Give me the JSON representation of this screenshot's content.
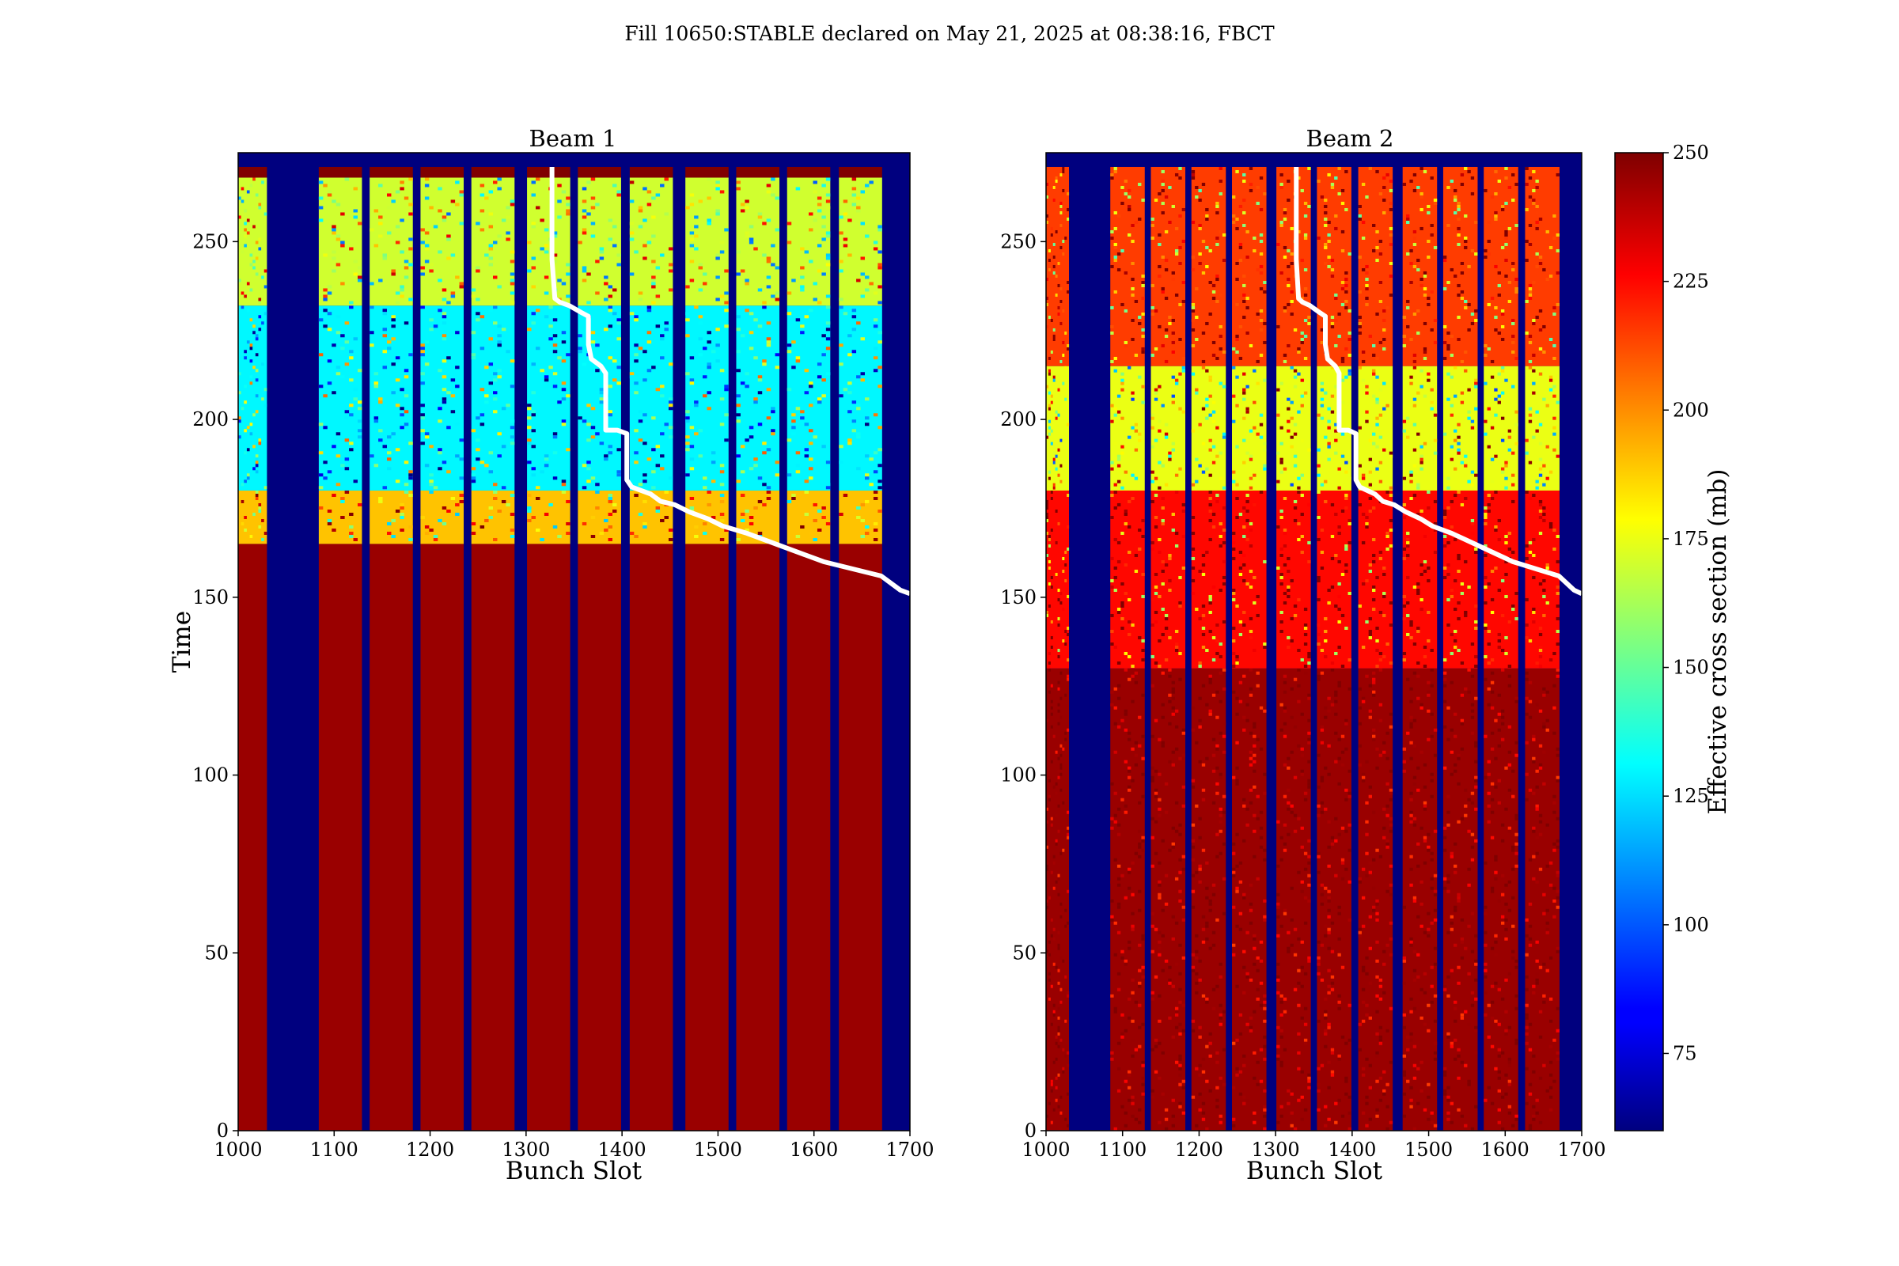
{
  "figure": {
    "suptitle": "Fill 10650:STABLE declared on May 21, 2025 at 08:38:16, FBCT"
  },
  "chart_data": [
    {
      "type": "heatmap",
      "title": "Beam 1",
      "xlabel": "Bunch Slot",
      "ylabel": "Time",
      "xlim": [
        1000,
        1700
      ],
      "ylim": [
        0,
        275
      ],
      "xticks": [
        "1000",
        "1100",
        "1200",
        "1300",
        "1400",
        "1500",
        "1600",
        "1700"
      ],
      "yticks": [
        "0",
        "50",
        "100",
        "150",
        "200",
        "250"
      ],
      "colorbar_label": "Effective cross section (mb)",
      "color_range": [
        60,
        250
      ],
      "colormap": "jet",
      "empty_value_color": "#00007f",
      "filled_trains": [
        [
          1000,
          1030
        ],
        [
          1084,
          1129
        ],
        [
          1137,
          1182
        ],
        [
          1190,
          1235
        ],
        [
          1243,
          1288
        ],
        [
          1301,
          1346
        ],
        [
          1354,
          1399
        ],
        [
          1408,
          1453
        ],
        [
          1466,
          1511
        ],
        [
          1519,
          1564
        ],
        [
          1572,
          1617
        ],
        [
          1626,
          1671
        ]
      ],
      "beam_end_time": 271,
      "regimes": [
        {
          "from": 0,
          "to": 165,
          "level": "high",
          "value": 245
        },
        {
          "from": 165,
          "to": 180,
          "level": "transition",
          "value": 190
        },
        {
          "from": 180,
          "to": 232,
          "level": "low",
          "value": 130
        },
        {
          "from": 232,
          "to": 268,
          "level": "mixed",
          "value": 170
        },
        {
          "from": 268,
          "to": 271,
          "level": "high",
          "value": 250
        }
      ],
      "dump_line": {
        "label_color": "#ffffff",
        "points": [
          [
            1700,
            151
          ],
          [
            1690,
            152
          ],
          [
            1670,
            156
          ],
          [
            1640,
            158
          ],
          [
            1610,
            160
          ],
          [
            1590,
            162
          ],
          [
            1570,
            164
          ],
          [
            1550,
            166
          ],
          [
            1530,
            168
          ],
          [
            1505,
            170
          ],
          [
            1490,
            172
          ],
          [
            1470,
            174
          ],
          [
            1455,
            176
          ],
          [
            1440,
            177
          ],
          [
            1430,
            179
          ],
          [
            1410,
            181
          ],
          [
            1405,
            183
          ],
          [
            1405,
            196
          ],
          [
            1395,
            197
          ],
          [
            1383,
            197
          ],
          [
            1383,
            213
          ],
          [
            1378,
            215
          ],
          [
            1368,
            217
          ],
          [
            1365,
            221
          ],
          [
            1365,
            229
          ],
          [
            1358,
            230
          ],
          [
            1345,
            232
          ],
          [
            1335,
            233
          ],
          [
            1330,
            234
          ],
          [
            1327,
            245
          ],
          [
            1327,
            271
          ]
        ]
      }
    },
    {
      "type": "heatmap",
      "title": "Beam 2",
      "xlabel": "Bunch Slot",
      "ylabel": "",
      "xlim": [
        1000,
        1700
      ],
      "ylim": [
        0,
        275
      ],
      "xticks": [
        "1000",
        "1100",
        "1200",
        "1300",
        "1400",
        "1500",
        "1600",
        "1700"
      ],
      "yticks": [
        "0",
        "50",
        "100",
        "150",
        "200",
        "250"
      ],
      "colorbar_label": "Effective cross section (mb)",
      "color_range": [
        60,
        250
      ],
      "colormap": "jet",
      "empty_value_color": "#00007f",
      "filled_trains": [
        [
          1000,
          1030
        ],
        [
          1084,
          1129
        ],
        [
          1137,
          1182
        ],
        [
          1190,
          1235
        ],
        [
          1243,
          1288
        ],
        [
          1301,
          1346
        ],
        [
          1354,
          1399
        ],
        [
          1408,
          1453
        ],
        [
          1466,
          1511
        ],
        [
          1519,
          1564
        ],
        [
          1572,
          1617
        ],
        [
          1626,
          1671
        ]
      ],
      "beam_end_time": 271,
      "regimes": [
        {
          "from": 0,
          "to": 130,
          "level": "high",
          "value": 245
        },
        {
          "from": 130,
          "to": 180,
          "level": "mixed",
          "value": 225
        },
        {
          "from": 180,
          "to": 215,
          "level": "low",
          "value": 175
        },
        {
          "from": 215,
          "to": 271,
          "level": "mixed",
          "value": 215
        }
      ],
      "dump_line": {
        "label_color": "#ffffff",
        "points": [
          [
            1700,
            151
          ],
          [
            1690,
            152
          ],
          [
            1670,
            156
          ],
          [
            1640,
            158
          ],
          [
            1610,
            160
          ],
          [
            1590,
            162
          ],
          [
            1570,
            164
          ],
          [
            1550,
            166
          ],
          [
            1530,
            168
          ],
          [
            1505,
            170
          ],
          [
            1490,
            172
          ],
          [
            1470,
            174
          ],
          [
            1455,
            176
          ],
          [
            1440,
            177
          ],
          [
            1430,
            179
          ],
          [
            1410,
            181
          ],
          [
            1405,
            183
          ],
          [
            1405,
            196
          ],
          [
            1395,
            197
          ],
          [
            1383,
            197
          ],
          [
            1383,
            213
          ],
          [
            1378,
            215
          ],
          [
            1368,
            217
          ],
          [
            1365,
            221
          ],
          [
            1365,
            229
          ],
          [
            1358,
            230
          ],
          [
            1345,
            232
          ],
          [
            1335,
            233
          ],
          [
            1330,
            234
          ],
          [
            1327,
            245
          ],
          [
            1327,
            271
          ]
        ]
      }
    }
  ],
  "colorbar": {
    "label": "Effective cross section (mb)",
    "range": [
      60,
      250
    ],
    "ticks": [
      "75",
      "100",
      "125",
      "150",
      "175",
      "200",
      "225",
      "250"
    ]
  }
}
